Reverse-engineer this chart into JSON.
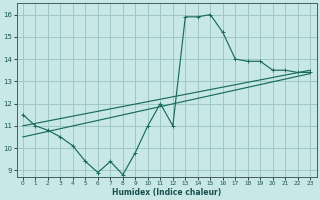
{
  "xlabel": "Humidex (Indice chaleur)",
  "bg_color": "#c8e8e8",
  "grid_color": "#a0c8c8",
  "line_color": "#1a6b5a",
  "xlim": [
    -0.5,
    23.5
  ],
  "ylim": [
    8.7,
    16.5
  ],
  "yticks": [
    9,
    10,
    11,
    12,
    13,
    14,
    15,
    16
  ],
  "xticks": [
    0,
    1,
    2,
    3,
    4,
    5,
    6,
    7,
    8,
    9,
    10,
    11,
    12,
    13,
    14,
    15,
    16,
    17,
    18,
    19,
    20,
    21,
    22,
    23
  ],
  "line1_x": [
    0,
    1,
    2,
    3,
    4,
    5,
    6,
    7,
    8,
    9,
    10,
    11,
    12,
    13,
    14,
    15,
    16,
    17,
    18,
    19,
    20,
    21,
    22,
    23
  ],
  "line1_y": [
    11.5,
    11.0,
    10.8,
    10.5,
    10.1,
    9.4,
    8.9,
    9.4,
    8.8,
    9.8,
    11.0,
    12.0,
    11.0,
    15.9,
    15.9,
    16.0,
    15.2,
    14.0,
    13.9,
    13.9,
    13.5,
    13.5,
    13.4,
    13.4
  ],
  "line2_x": [
    0,
    23
  ],
  "line2_y": [
    11.0,
    13.5
  ],
  "line3_x": [
    0,
    23
  ],
  "line3_y": [
    10.5,
    13.35
  ]
}
